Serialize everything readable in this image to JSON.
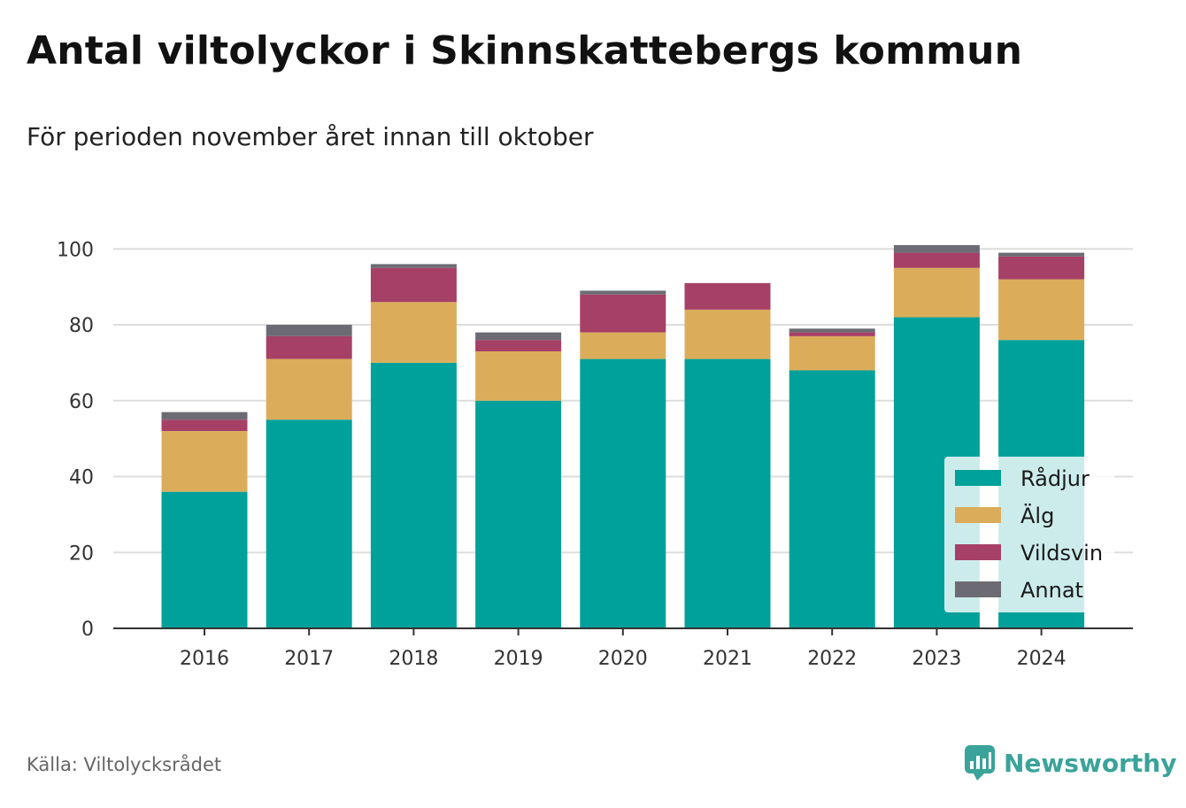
{
  "title": "Antal viltolyckor i Skinnskattebergs kommun",
  "subtitle": "För perioden november året innan till oktober",
  "source": "Källa: Viltolycksrådet",
  "brand": "Newsworthy",
  "colors": {
    "radjur": "#00a19a",
    "alg": "#dbad5a",
    "vildsvin": "#a64066",
    "annat": "#6c6b73",
    "grid": "#dddddd",
    "axis": "#333333",
    "brand": "#3aa39a"
  },
  "chart_data": {
    "type": "bar",
    "stacked": true,
    "categories": [
      "2016",
      "2017",
      "2018",
      "2019",
      "2020",
      "2021",
      "2022",
      "2023",
      "2024"
    ],
    "series": [
      {
        "name": "Rådjur",
        "color": "#00a19a",
        "values": [
          36,
          55,
          70,
          60,
          71,
          71,
          68,
          82,
          76
        ]
      },
      {
        "name": "Älg",
        "color": "#dbad5a",
        "values": [
          16,
          16,
          16,
          13,
          7,
          13,
          9,
          13,
          16
        ]
      },
      {
        "name": "Vildsvin",
        "color": "#a64066",
        "values": [
          3,
          6,
          9,
          3,
          10,
          7,
          1,
          4,
          6
        ]
      },
      {
        "name": "Annat",
        "color": "#6c6b73",
        "values": [
          2,
          3,
          1,
          2,
          1,
          0,
          1,
          2,
          1
        ]
      }
    ],
    "yticks": [
      0,
      20,
      40,
      60,
      80,
      100
    ],
    "ylim": [
      0,
      101
    ],
    "grid": true,
    "legend": "bottom-right"
  }
}
